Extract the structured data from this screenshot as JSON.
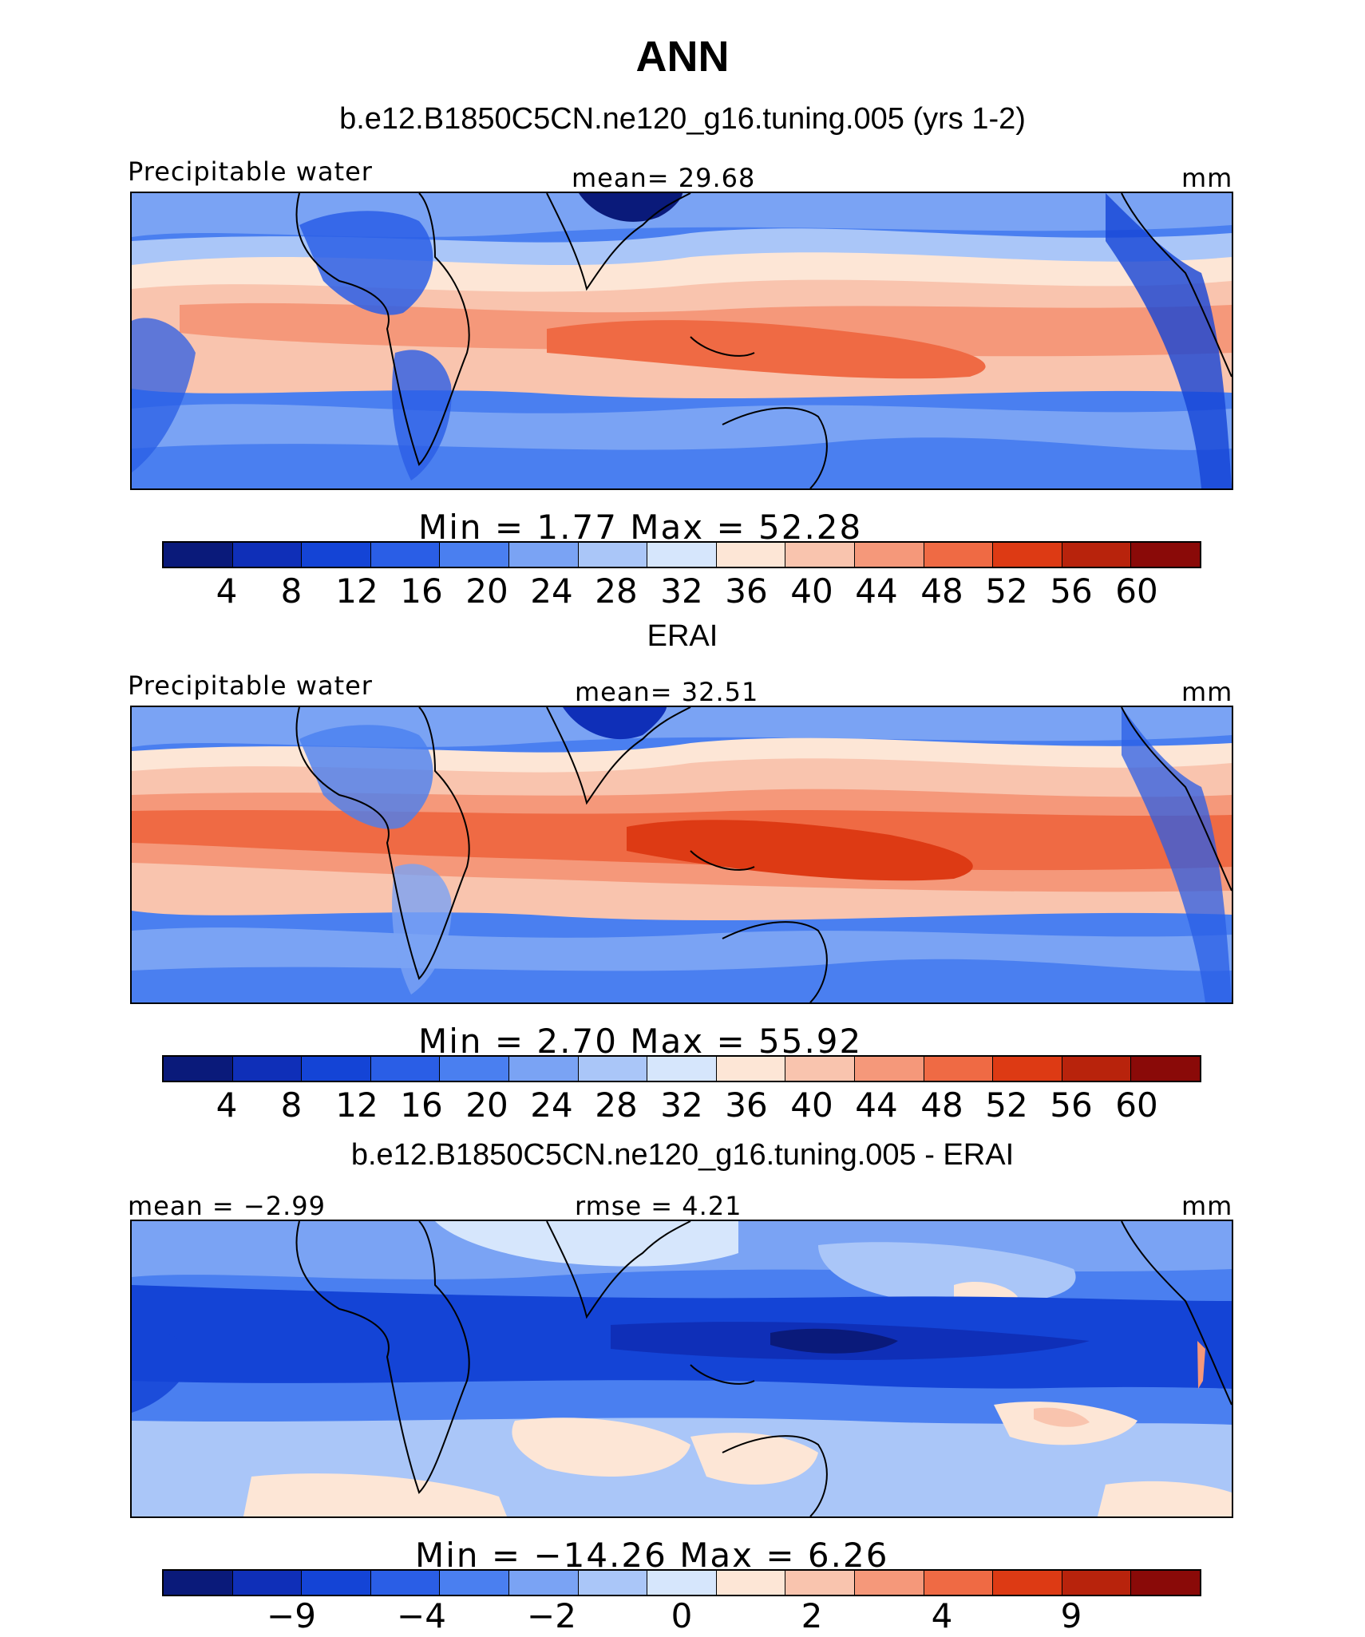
{
  "title": "ANN",
  "palette": {
    "full": [
      "#0a1a7a",
      "#0f2fb8",
      "#1444d6",
      "#2a5ee6",
      "#4a7ff0",
      "#7aa3f4",
      "#aac6f8",
      "#d6e6fc",
      "#fde6d6",
      "#f9c4ae",
      "#f5987a",
      "#ef6a44",
      "#dd3a14",
      "#b8230c",
      "#8a0a08"
    ]
  },
  "panels": [
    {
      "subtitle": "b.e12.B1850C5CN.ne120_g16.tuning.005 (yrs 1-2)",
      "left_label": "Precipitable water",
      "center_label": "mean=   29.68",
      "right_label": "mm",
      "minmax": "Min  =     1.77  Max  =    52.28",
      "colorbar_ticks": [
        "4",
        "8",
        "12",
        "16",
        "20",
        "24",
        "28",
        "32",
        "36",
        "40",
        "44",
        "48",
        "52",
        "56",
        "60"
      ],
      "field": {
        "kind": "model",
        "min": 1.77,
        "max": 52.28,
        "mean": 29.68
      }
    },
    {
      "subtitle": "ERAI",
      "left_label": "Precipitable water",
      "center_label": "mean=   32.51",
      "right_label": "mm",
      "minmax": "Min  =     2.70  Max  =    55.92",
      "colorbar_ticks": [
        "4",
        "8",
        "12",
        "16",
        "20",
        "24",
        "28",
        "32",
        "36",
        "40",
        "44",
        "48",
        "52",
        "56",
        "60"
      ],
      "field": {
        "kind": "obs",
        "min": 2.7,
        "max": 55.92,
        "mean": 32.51
      }
    },
    {
      "subtitle": "b.e12.B1850C5CN.ne120_g16.tuning.005 - ERAI",
      "left_label": "mean =   −2.99",
      "center_label": "rmse =     4.21",
      "right_label": "mm",
      "minmax": "Min  = −14.26  Max  =     6.26",
      "colorbar_ticks": [
        "−9",
        "−4",
        "−2",
        "0",
        "2",
        "4",
        "9"
      ],
      "field": {
        "kind": "diff",
        "min": -14.26,
        "max": 6.26,
        "mean": -2.99,
        "rmse": 4.21
      }
    }
  ]
}
